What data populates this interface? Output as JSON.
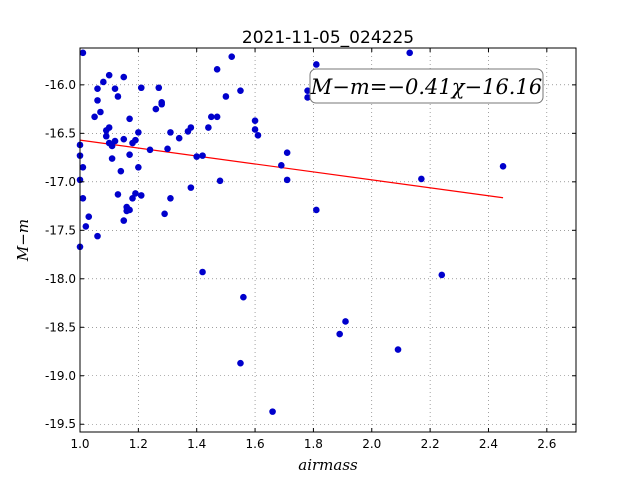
{
  "chart_data": {
    "type": "scatter",
    "title": "2021-11-05_024225",
    "xlabel": "airmass",
    "ylabel": "M−m",
    "xlim": [
      1.0,
      2.7
    ],
    "ylim": [
      -19.58,
      -15.62
    ],
    "xticks": [
      "1.0",
      "1.2",
      "1.4",
      "1.6",
      "1.8",
      "2.0",
      "2.2",
      "2.4",
      "2.6"
    ],
    "yticks": [
      "-16.0",
      "-16.5",
      "-17.0",
      "-17.5",
      "-18.0",
      "-18.5",
      "-19.0",
      "-19.5"
    ],
    "grid": true,
    "annotation": "M−m=−0.41χ−16.16",
    "fit": {
      "slope": -0.41,
      "intercept": -16.16,
      "x_range": [
        1.0,
        2.45
      ],
      "color": "#ff0000"
    },
    "marker_color": "#0000cc",
    "points": [
      [
        1.01,
        -15.67
      ],
      [
        1.0,
        -16.62
      ],
      [
        1.0,
        -16.73
      ],
      [
        1.01,
        -16.85
      ],
      [
        1.0,
        -16.98
      ],
      [
        1.01,
        -17.17
      ],
      [
        1.02,
        -17.46
      ],
      [
        1.03,
        -17.36
      ],
      [
        1.0,
        -17.67
      ],
      [
        1.05,
        -16.33
      ],
      [
        1.06,
        -16.16
      ],
      [
        1.06,
        -16.04
      ],
      [
        1.07,
        -16.28
      ],
      [
        1.08,
        -15.97
      ],
      [
        1.1,
        -15.9
      ],
      [
        1.09,
        -16.47
      ],
      [
        1.1,
        -16.44
      ],
      [
        1.09,
        -16.53
      ],
      [
        1.1,
        -16.6
      ],
      [
        1.11,
        -16.63
      ],
      [
        1.12,
        -16.58
      ],
      [
        1.12,
        -16.04
      ],
      [
        1.13,
        -16.12
      ],
      [
        1.15,
        -15.92
      ],
      [
        1.11,
        -16.76
      ],
      [
        1.14,
        -16.89
      ],
      [
        1.13,
        -17.13
      ],
      [
        1.15,
        -16.56
      ],
      [
        1.16,
        -17.26
      ],
      [
        1.17,
        -17.29
      ],
      [
        1.16,
        -17.3
      ],
      [
        1.15,
        -17.4
      ],
      [
        1.06,
        -17.56
      ],
      [
        1.17,
        -16.35
      ],
      [
        1.17,
        -16.72
      ],
      [
        1.18,
        -16.6
      ],
      [
        1.19,
        -16.57
      ],
      [
        1.2,
        -16.49
      ],
      [
        1.21,
        -16.03
      ],
      [
        1.2,
        -16.85
      ],
      [
        1.19,
        -17.12
      ],
      [
        1.18,
        -17.17
      ],
      [
        1.21,
        -17.14
      ],
      [
        1.24,
        -16.67
      ],
      [
        1.26,
        -16.25
      ],
      [
        1.27,
        -16.03
      ],
      [
        1.28,
        -16.2
      ],
      [
        1.28,
        -16.18
      ],
      [
        1.3,
        -16.66
      ],
      [
        1.31,
        -16.49
      ],
      [
        1.34,
        -16.55
      ],
      [
        1.37,
        -16.48
      ],
      [
        1.38,
        -16.44
      ],
      [
        1.38,
        -17.06
      ],
      [
        1.4,
        -16.74
      ],
      [
        1.42,
        -16.73
      ],
      [
        1.31,
        -17.17
      ],
      [
        1.29,
        -17.33
      ],
      [
        1.44,
        -16.44
      ],
      [
        1.45,
        -16.33
      ],
      [
        1.47,
        -16.33
      ],
      [
        1.47,
        -15.84
      ],
      [
        1.52,
        -15.71
      ],
      [
        1.5,
        -16.12
      ],
      [
        1.55,
        -16.06
      ],
      [
        1.48,
        -16.99
      ],
      [
        1.6,
        -16.37
      ],
      [
        1.6,
        -16.46
      ],
      [
        1.61,
        -16.52
      ],
      [
        1.42,
        -17.93
      ],
      [
        1.56,
        -18.19
      ],
      [
        1.55,
        -18.87
      ],
      [
        1.69,
        -16.83
      ],
      [
        1.71,
        -16.98
      ],
      [
        1.71,
        -16.7
      ],
      [
        1.66,
        -19.37
      ],
      [
        1.78,
        -16.06
      ],
      [
        1.78,
        -16.13
      ],
      [
        1.81,
        -15.79
      ],
      [
        1.81,
        -17.29
      ],
      [
        1.91,
        -18.44
      ],
      [
        1.89,
        -18.57
      ],
      [
        2.09,
        -18.73
      ],
      [
        2.13,
        -15.67
      ],
      [
        2.17,
        -16.97
      ],
      [
        2.24,
        -17.96
      ],
      [
        2.45,
        -16.84
      ]
    ]
  }
}
